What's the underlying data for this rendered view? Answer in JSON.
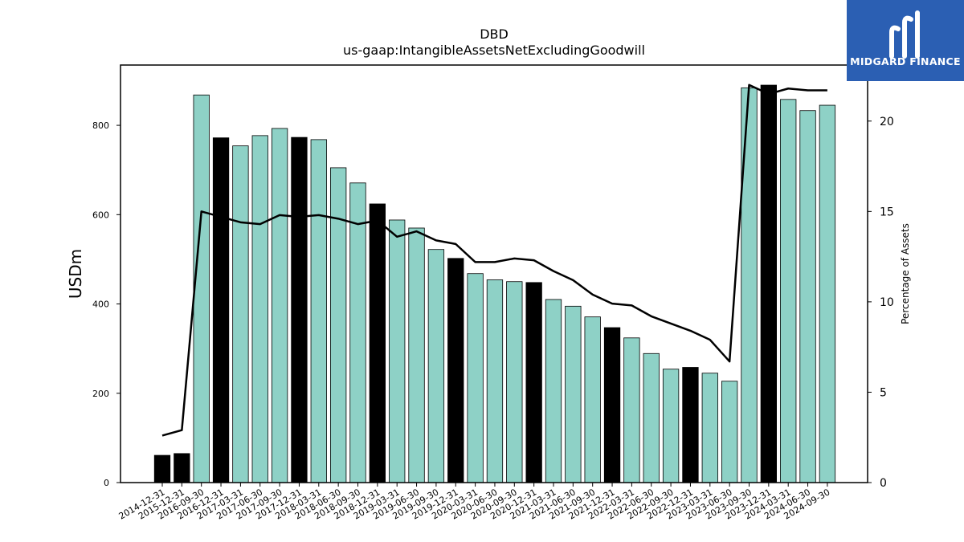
{
  "chart_data": {
    "type": "bar",
    "title": "DBD",
    "subtitle": "us-gaap:IntangibleAssetsNetExcludingGoodwill",
    "ylabel": "USDm",
    "y2label": "Percentage of Assets",
    "ylim": [
      0,
      935
    ],
    "y2lim": [
      0,
      23.1
    ],
    "yticks": [
      0,
      200,
      400,
      600,
      800
    ],
    "y2ticks": [
      0,
      5,
      10,
      15,
      20
    ],
    "grid": false,
    "colors": {
      "annual": "#000000",
      "quarterly": "#8ed1c6",
      "line": "#000000"
    },
    "categories": [
      "2014-12-31",
      "2015-12-31",
      "2016-09-30",
      "2016-12-31",
      "2017-03-31",
      "2017-06-30",
      "2017-09-30",
      "2017-12-31",
      "2018-03-31",
      "2018-06-30",
      "2018-09-30",
      "2018-12-31",
      "2019-03-31",
      "2019-06-30",
      "2019-09-30",
      "2019-12-31",
      "2020-03-31",
      "2020-06-30",
      "2020-09-30",
      "2020-12-31",
      "2021-03-31",
      "2021-06-30",
      "2021-09-30",
      "2021-12-31",
      "2022-03-31",
      "2022-06-30",
      "2022-09-30",
      "2022-12-31",
      "2023-03-31",
      "2023-06-30",
      "2023-09-30",
      "2023-12-31",
      "2024-03-31",
      "2024-06-30",
      "2024-09-30"
    ],
    "series": [
      {
        "type": "bar",
        "values": [
          61,
          65,
          868,
          772,
          754,
          777,
          793,
          773,
          768,
          705,
          671,
          624,
          588,
          570,
          522,
          502,
          468,
          454,
          450,
          448,
          410,
          395,
          371,
          347,
          324,
          289,
          254,
          258,
          245,
          227,
          884,
          890,
          858,
          833,
          845
        ],
        "annual": [
          true,
          true,
          false,
          true,
          false,
          false,
          false,
          true,
          false,
          false,
          false,
          true,
          false,
          false,
          false,
          true,
          false,
          false,
          false,
          true,
          false,
          false,
          false,
          true,
          false,
          false,
          false,
          true,
          false,
          false,
          false,
          true,
          false,
          false,
          false
        ]
      },
      {
        "type": "line",
        "axis": "right",
        "values": [
          2.6,
          2.9,
          15.0,
          14.7,
          14.4,
          14.3,
          14.8,
          14.7,
          14.8,
          14.6,
          14.3,
          14.5,
          13.6,
          13.9,
          13.4,
          13.2,
          12.2,
          12.2,
          12.4,
          12.3,
          11.7,
          11.2,
          10.4,
          9.9,
          9.8,
          9.2,
          8.8,
          8.4,
          7.9,
          6.7,
          22.0,
          21.5,
          21.8,
          21.7,
          21.7
        ]
      }
    ]
  },
  "logo": {
    "text": "MIDGARD FINANCE",
    "bg": "#2b5fb3"
  }
}
